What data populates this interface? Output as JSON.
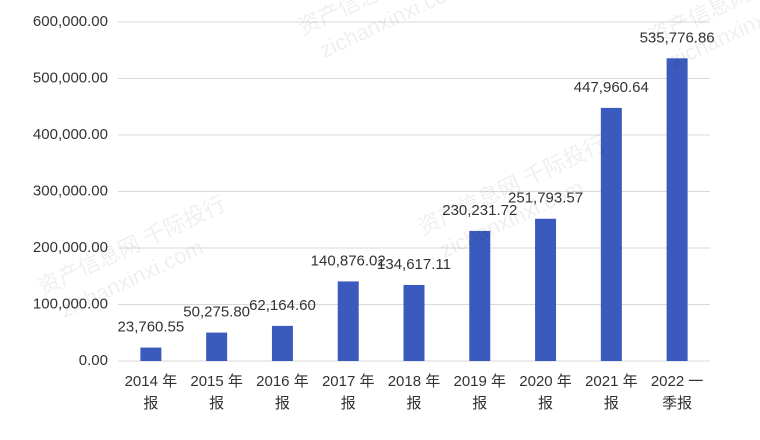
{
  "chart_data": {
    "type": "bar",
    "categories": [
      "2014 年报",
      "2015 年报",
      "2016 年报",
      "2017 年报",
      "2018 年报",
      "2019 年报",
      "2020 年报",
      "2021 年报",
      "2022 一季报"
    ],
    "values": [
      23760.55,
      50275.8,
      62164.6,
      140876.02,
      134617.11,
      230231.72,
      251793.57,
      447960.64,
      535776.86
    ],
    "value_labels": [
      "23,760.55",
      "50,275.80",
      "62,164.60",
      "140,876.02",
      "134,617.11",
      "230,231.72",
      "251,793.57",
      "447,960.64",
      "535,776.86"
    ],
    "color": "#3a5bbd",
    "ylim": [
      0,
      600000
    ],
    "yticks": [
      {
        "value": 0,
        "label": "0.00"
      },
      {
        "value": 100000,
        "label": "100,000.00"
      },
      {
        "value": 200000,
        "label": "200,000.00"
      },
      {
        "value": 300000,
        "label": "300,000.00"
      },
      {
        "value": 400000,
        "label": "400,000.00"
      },
      {
        "value": 500000,
        "label": "500,000.00"
      },
      {
        "value": 600000,
        "label": "600,000.00"
      }
    ],
    "grid": true,
    "watermark": [
      "资产信息网 千际投行",
      "zichanxinxi.com"
    ]
  }
}
